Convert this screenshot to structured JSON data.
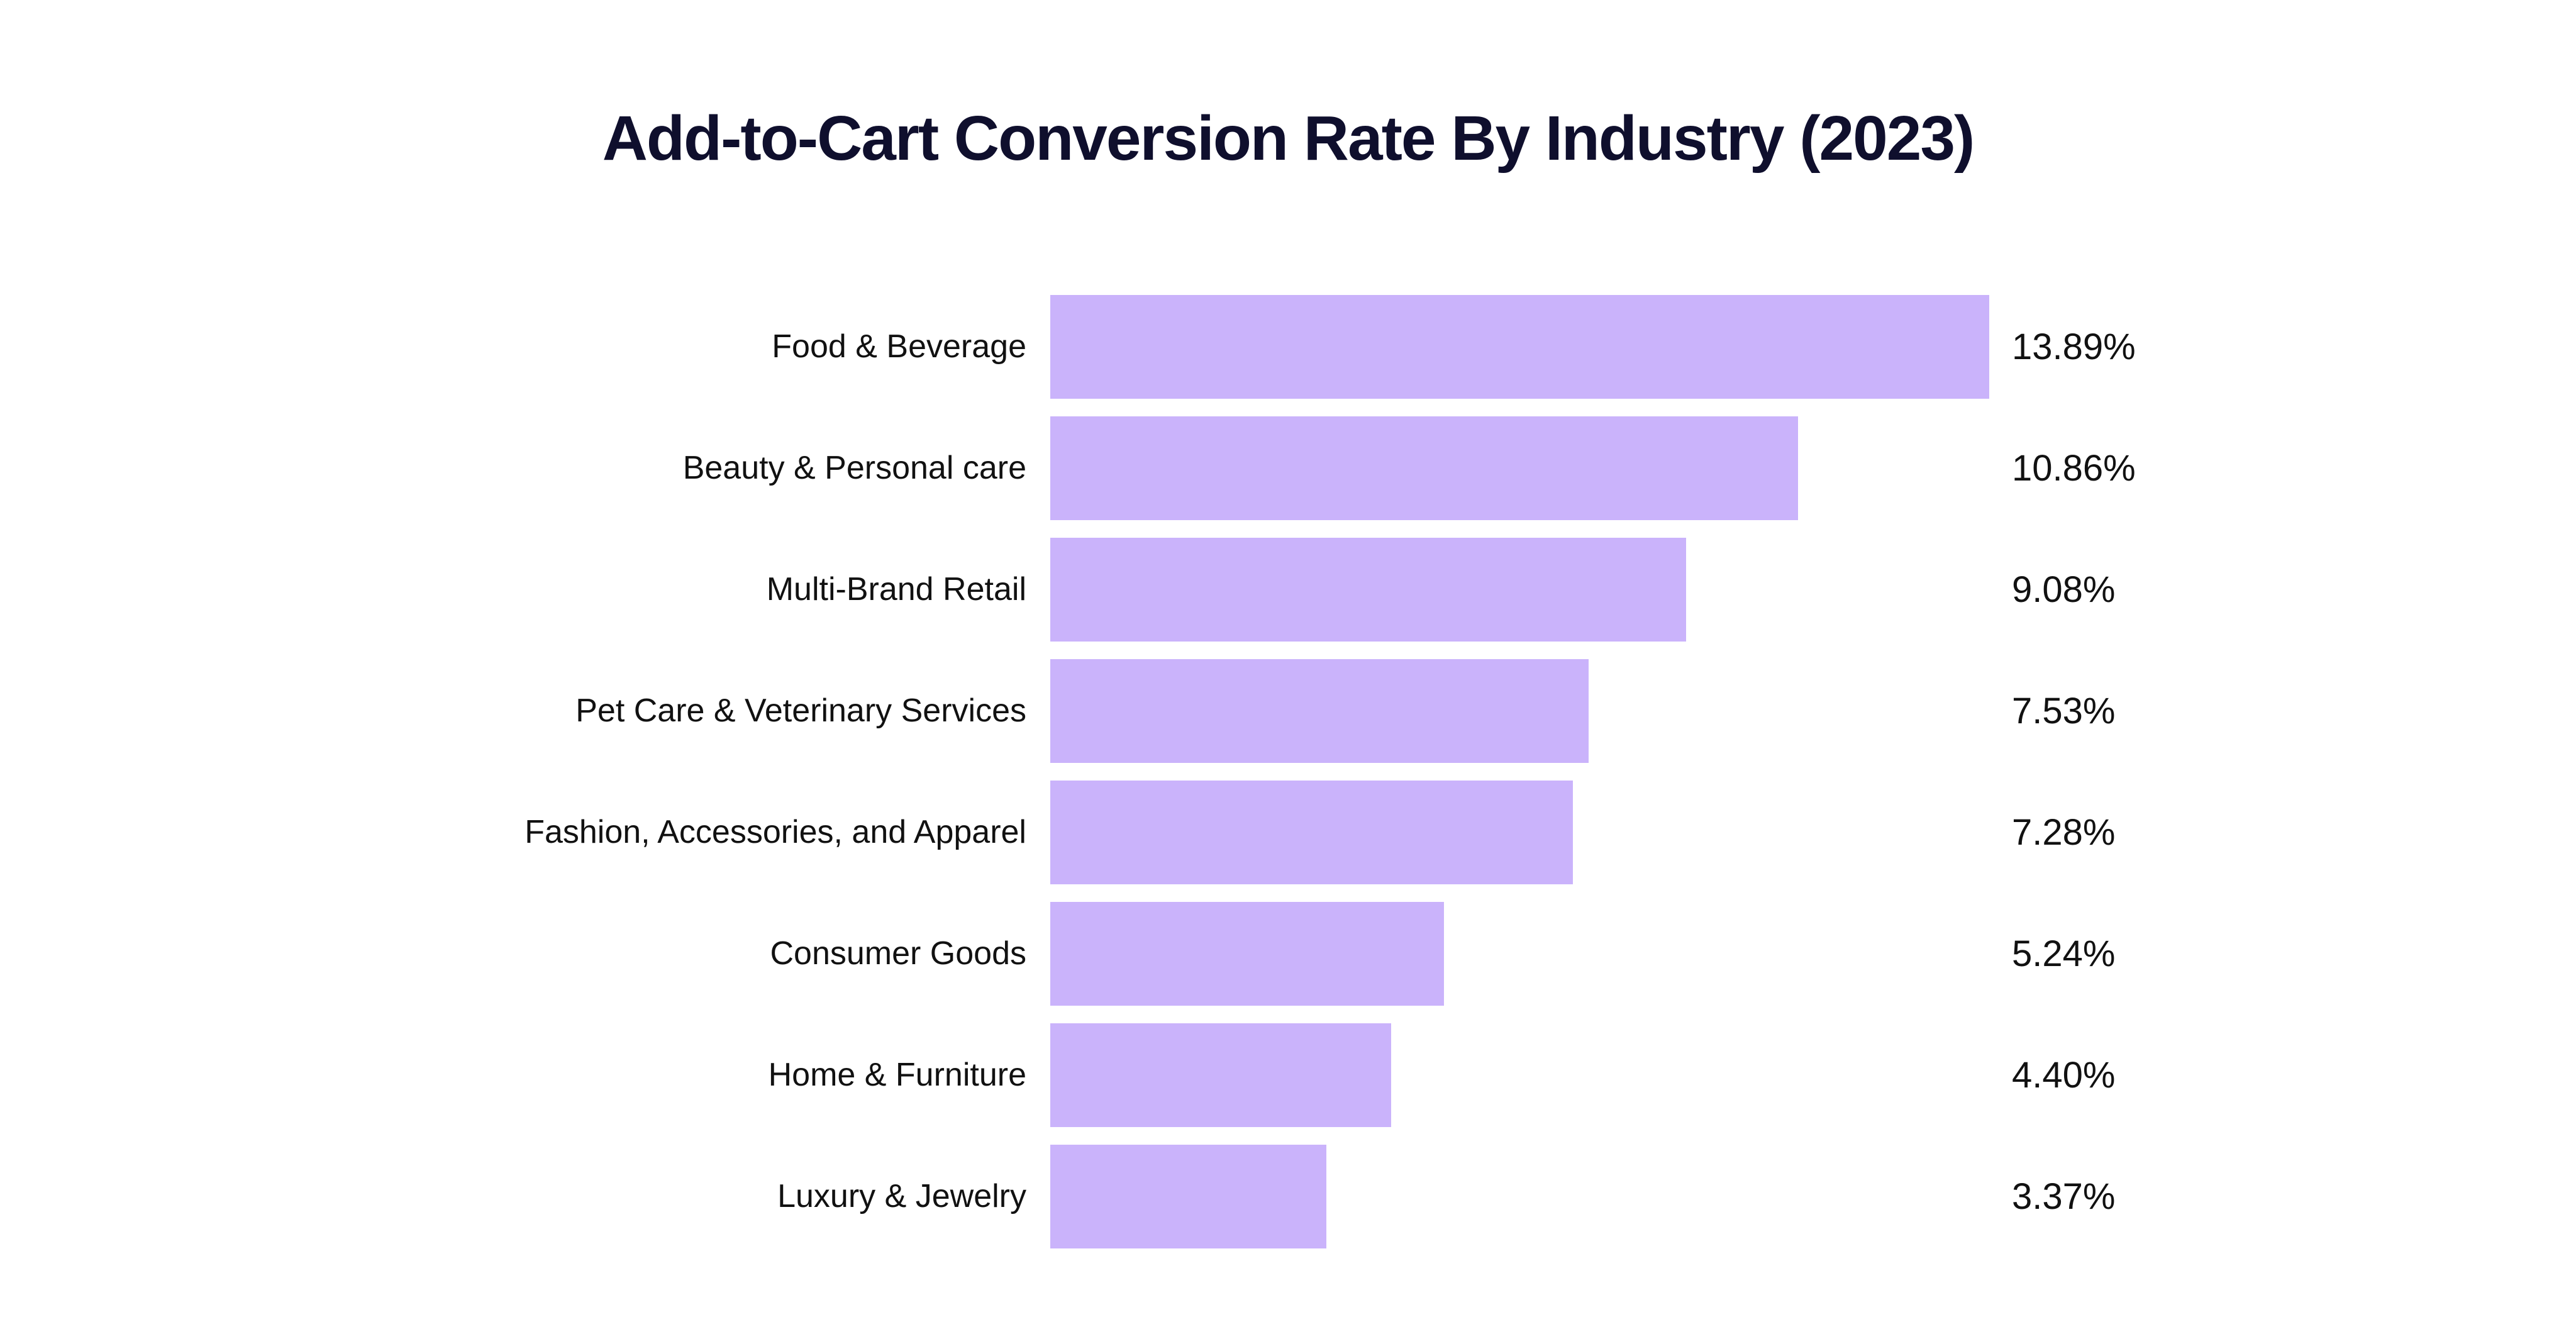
{
  "chart": {
    "title": "Add-to-Cart Conversion Rate By Industry (2023)"
  },
  "chart_data": {
    "type": "bar",
    "orientation": "horizontal",
    "title": "Add-to-Cart Conversion Rate By Industry (2023)",
    "xlabel": "",
    "ylabel": "",
    "xlim": [
      0,
      13.89
    ],
    "grid": false,
    "legend": false,
    "categories": [
      "Food & Beverage",
      "Beauty & Personal care",
      "Multi-Brand Retail",
      "Pet Care & Veterinary Services",
      "Fashion, Accessories, and Apparel",
      "Consumer Goods",
      "Home & Furniture",
      "Luxury & Jewelry"
    ],
    "values": [
      13.89,
      10.86,
      9.08,
      7.53,
      7.28,
      5.24,
      4.4,
      3.37
    ],
    "value_labels": [
      "13.89%",
      "10.86%",
      "9.08%",
      "7.53%",
      "7.28%",
      "5.24%",
      "4.40%",
      "3.37%"
    ],
    "colors": {
      "bar": "#cab3fb",
      "title": "#0f0f2d",
      "text": "#111111",
      "background": "#ffffff"
    }
  }
}
